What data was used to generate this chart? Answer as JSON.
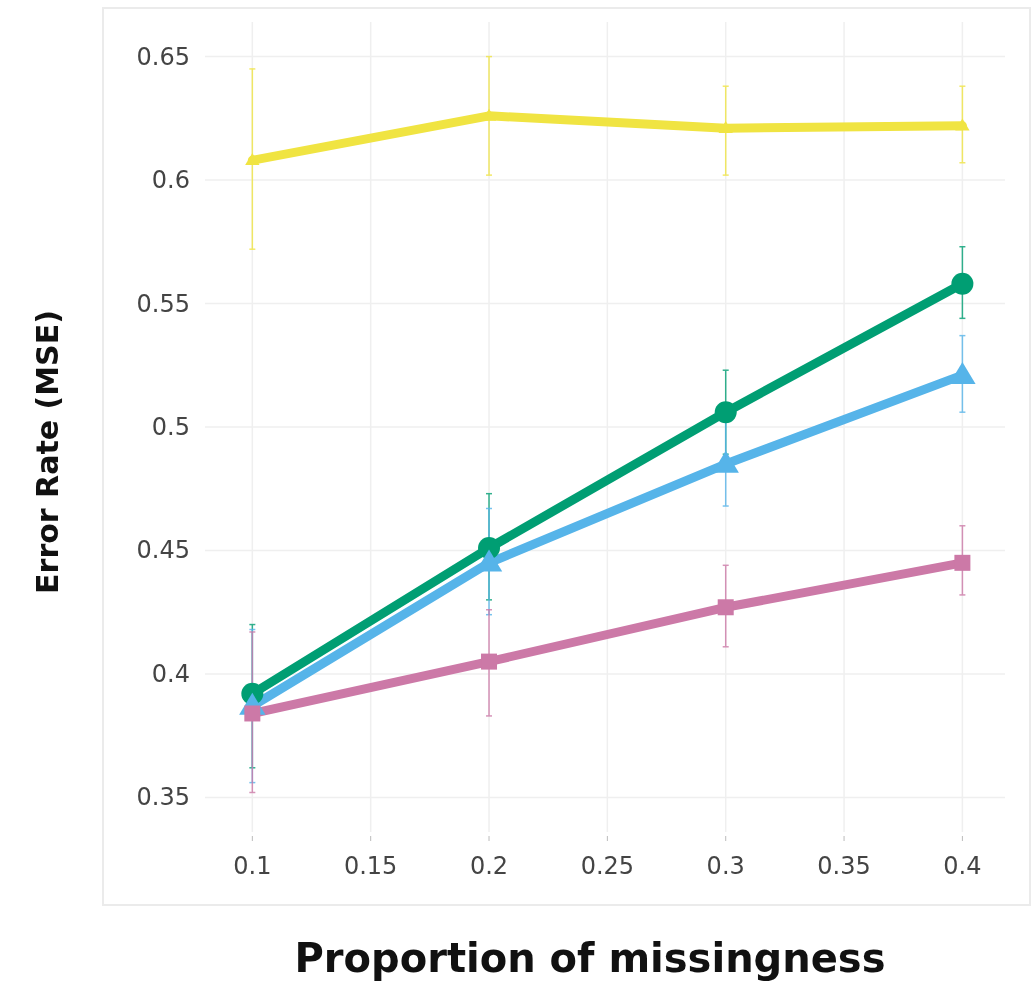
{
  "chart_data": {
    "type": "line",
    "xlabel": "Proportion of missingness",
    "ylabel": "Error Rate (MSE)",
    "x": [
      0.1,
      0.2,
      0.3,
      0.4
    ],
    "xlim": [
      0.08,
      0.418
    ],
    "xticks": [
      0.1,
      0.15,
      0.2,
      0.25,
      0.3,
      0.35,
      0.4
    ],
    "ylim": [
      0.336,
      0.664
    ],
    "yticks": [
      0.35,
      0.4,
      0.45,
      0.5,
      0.55,
      0.6,
      0.65
    ],
    "grid": true,
    "line_style": "solid",
    "series": [
      {
        "color": "#f0e442",
        "marker": "triangle",
        "values": [
          0.608,
          0.626,
          0.621,
          0.622
        ],
        "errors": [
          [
            0.572,
            0.645
          ],
          [
            0.602,
            0.65
          ],
          [
            0.602,
            0.638
          ],
          [
            0.607,
            0.638
          ]
        ]
      },
      {
        "color": "#009e73",
        "marker": "circle",
        "values": [
          0.392,
          0.451,
          0.506,
          0.558
        ],
        "errors": [
          [
            0.362,
            0.42
          ],
          [
            0.43,
            0.473
          ],
          [
            0.489,
            0.523
          ],
          [
            0.544,
            0.573
          ]
        ]
      },
      {
        "color": "#56b4e9",
        "marker": "triangle",
        "values": [
          0.387,
          0.445,
          0.485,
          0.521
        ],
        "errors": [
          [
            0.356,
            0.418
          ],
          [
            0.424,
            0.467
          ],
          [
            0.468,
            0.502
          ],
          [
            0.506,
            0.537
          ]
        ]
      },
      {
        "color": "#cc79a7",
        "marker": "square",
        "values": [
          0.384,
          0.405,
          0.427,
          0.445
        ],
        "errors": [
          [
            0.352,
            0.417
          ],
          [
            0.383,
            0.426
          ],
          [
            0.411,
            0.444
          ],
          [
            0.432,
            0.46
          ]
        ]
      }
    ]
  }
}
